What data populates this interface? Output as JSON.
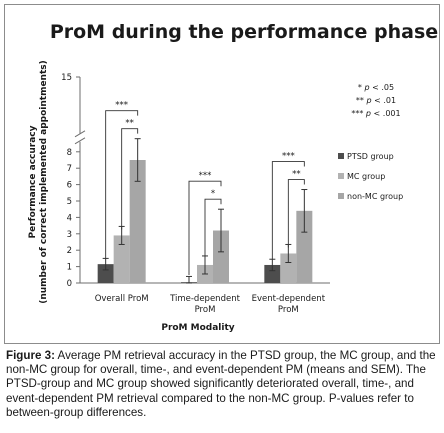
{
  "chart_data": {
    "type": "bar",
    "title": "ProM during the performance phase",
    "ylabel_line1": "Performance accuracy",
    "ylabel_line2": "(number of correct implemented appointments)",
    "xlabel": "ProM Modality",
    "categories": [
      "Overall ProM",
      "Time-dependent ProM",
      "Event-dependent ProM"
    ],
    "category_lines": [
      [
        "Overall ProM"
      ],
      [
        "Time-dependent",
        "ProM"
      ],
      [
        "Event-dependent",
        "ProM"
      ]
    ],
    "yticks": [
      0,
      1,
      2,
      3,
      4,
      5,
      6,
      7,
      8
    ],
    "ybreak_label": "15",
    "ylim": [
      0,
      8.5
    ],
    "axis_break": true,
    "series": [
      {
        "name": "PTSD group",
        "color": "#4d4d4d",
        "values": [
          1.15,
          0.05,
          1.1
        ],
        "errors": [
          0.35,
          0.35,
          0.35
        ]
      },
      {
        "name": "MC group",
        "color": "#b2b2b2",
        "values": [
          2.9,
          1.1,
          1.8
        ],
        "errors": [
          0.55,
          0.55,
          0.55
        ]
      },
      {
        "name": "non-MC group",
        "color": "#a6a6a6",
        "values": [
          7.5,
          3.2,
          4.4
        ],
        "errors": [
          1.3,
          1.3,
          1.3
        ]
      }
    ],
    "significance": [
      {
        "category": 0,
        "from": 0,
        "to": 2,
        "label": "***"
      },
      {
        "category": 0,
        "from": 1,
        "to": 2,
        "label": "**"
      },
      {
        "category": 1,
        "from": 0,
        "to": 2,
        "label": "***"
      },
      {
        "category": 1,
        "from": 1,
        "to": 2,
        "label": "*"
      },
      {
        "category": 2,
        "from": 0,
        "to": 2,
        "label": "***"
      },
      {
        "category": 2,
        "from": 1,
        "to": 2,
        "label": "**"
      }
    ],
    "pvalue_key": [
      "* p < .05",
      "** p < .01",
      "*** p < .001"
    ],
    "grid": false,
    "legend_position": "right"
  },
  "caption": {
    "label": "Figure 3:",
    "text": " Average PM retrieval accuracy in the PTSD group, the MC group, and the non-MC group for overall, time-, and event-dependent PM (means and SEM). The PTSD-group and MC group showed significantly deteriorated overall, time-, and event-dependent PM retrieval compared to the non-MC group. P-values refer to between-group differences."
  },
  "colors": {
    "frame": "#8c8c8c",
    "axis": "#6e6e6e",
    "text": "#1a1a1a"
  }
}
